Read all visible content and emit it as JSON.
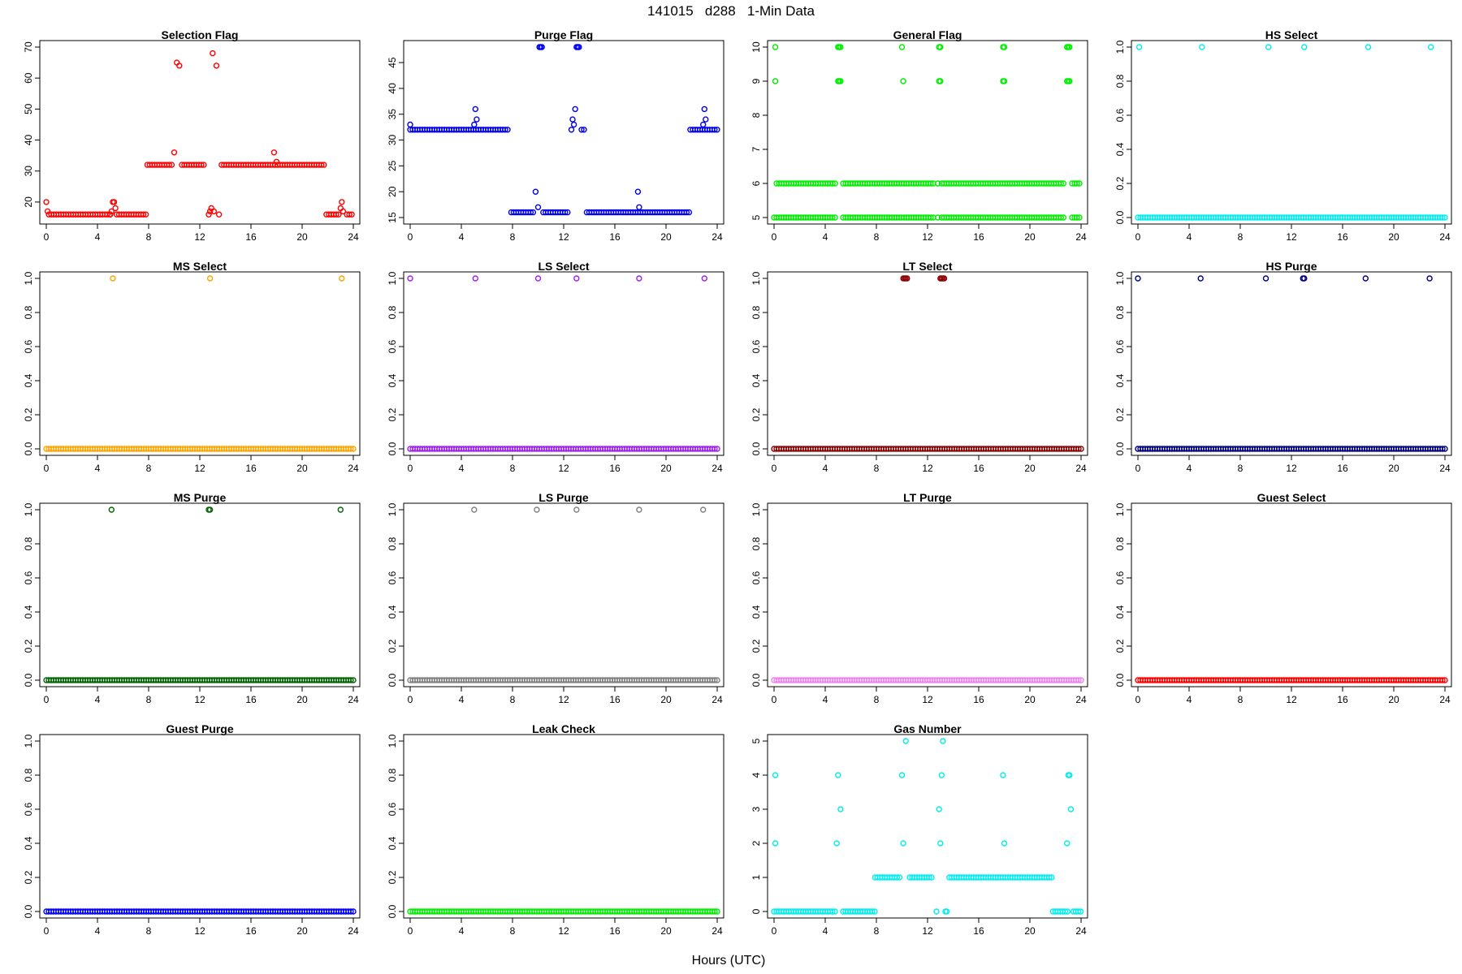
{
  "figure": {
    "title": "141015   d288   1-Min Data",
    "xlabel": "Hours (UTC)"
  },
  "chart_data": [
    {
      "type": "scatter",
      "title": "Selection Flag",
      "color": "#ff0000",
      "xlim": [
        0,
        24
      ],
      "ylim": [
        15,
        70
      ],
      "xticks": [
        0,
        4,
        8,
        12,
        16,
        20,
        24
      ],
      "yticks": [
        20,
        30,
        40,
        50,
        60,
        70
      ],
      "ytick_labels": [
        "20",
        "30",
        "40",
        "50",
        "60",
        "70"
      ],
      "runs": [
        [
          0.2,
          5.0,
          16
        ],
        [
          5.5,
          7.8,
          16
        ],
        [
          7.9,
          9.9,
          32
        ],
        [
          10.6,
          12.4,
          32
        ],
        [
          13.7,
          21.8,
          32
        ],
        [
          21.9,
          23.0,
          16
        ],
        [
          23.5,
          24.0,
          16
        ]
      ],
      "points": [
        [
          0.0,
          20
        ],
        [
          0.1,
          17
        ],
        [
          5.0,
          16
        ],
        [
          5.1,
          17
        ],
        [
          5.2,
          20
        ],
        [
          5.3,
          20
        ],
        [
          5.4,
          18
        ],
        [
          10.0,
          36
        ],
        [
          10.2,
          65
        ],
        [
          10.4,
          64
        ],
        [
          12.7,
          16
        ],
        [
          12.8,
          17
        ],
        [
          12.9,
          18
        ],
        [
          13.0,
          68
        ],
        [
          13.1,
          17
        ],
        [
          13.3,
          64
        ],
        [
          13.5,
          16
        ],
        [
          17.8,
          36
        ],
        [
          18.0,
          33
        ],
        [
          23.0,
          18
        ],
        [
          23.1,
          20
        ],
        [
          23.2,
          17
        ]
      ]
    },
    {
      "type": "scatter",
      "title": "Purge Flag",
      "color": "#0000ee",
      "xlim": [
        0,
        24
      ],
      "ylim": [
        15,
        48
      ],
      "xticks": [
        0,
        4,
        8,
        12,
        16,
        20,
        24
      ],
      "yticks": [
        15,
        20,
        25,
        30,
        35,
        40,
        45
      ],
      "ytick_labels": [
        "15",
        "20",
        "25",
        "30",
        "35",
        "40",
        "45"
      ],
      "runs": [
        [
          0.0,
          7.8,
          32
        ],
        [
          7.9,
          9.8,
          16
        ],
        [
          10.4,
          12.4,
          16
        ],
        [
          13.4,
          13.6,
          32
        ],
        [
          13.8,
          21.8,
          16
        ],
        [
          21.9,
          24.0,
          32
        ]
      ],
      "points": [
        [
          0.0,
          33
        ],
        [
          5.0,
          33
        ],
        [
          5.1,
          36
        ],
        [
          5.2,
          34
        ],
        [
          9.8,
          20
        ],
        [
          10.0,
          17
        ],
        [
          10.1,
          48
        ],
        [
          10.2,
          48
        ],
        [
          10.3,
          48
        ],
        [
          12.6,
          32
        ],
        [
          12.7,
          34
        ],
        [
          12.8,
          33
        ],
        [
          12.9,
          36
        ],
        [
          13.0,
          48
        ],
        [
          13.1,
          48
        ],
        [
          13.2,
          48
        ],
        [
          17.8,
          20
        ],
        [
          17.9,
          17
        ],
        [
          22.9,
          33
        ],
        [
          23.0,
          36
        ],
        [
          23.1,
          34
        ]
      ]
    },
    {
      "type": "scatter",
      "title": "General Flag",
      "color": "#00ee00",
      "xlim": [
        0,
        24
      ],
      "ylim": [
        5,
        10
      ],
      "xticks": [
        0,
        4,
        8,
        12,
        16,
        20,
        24
      ],
      "yticks": [
        5,
        6,
        7,
        8,
        9,
        10
      ],
      "ytick_labels": [
        "5",
        "6",
        "7",
        "8",
        "9",
        "10"
      ],
      "runs": [
        [
          0.0,
          4.9,
          5
        ],
        [
          0.2,
          4.9,
          6
        ],
        [
          5.4,
          12.5,
          5
        ],
        [
          5.4,
          12.5,
          6
        ],
        [
          13.1,
          22.8,
          5
        ],
        [
          13.1,
          22.8,
          6
        ],
        [
          23.3,
          24.0,
          5
        ],
        [
          23.3,
          24.0,
          6
        ]
      ],
      "points": [
        [
          0.1,
          10
        ],
        [
          0.1,
          9
        ],
        [
          5.0,
          10
        ],
        [
          5.1,
          10
        ],
        [
          5.2,
          10
        ],
        [
          5.0,
          9
        ],
        [
          5.1,
          9
        ],
        [
          5.2,
          9
        ],
        [
          10.0,
          10
        ],
        [
          10.1,
          9
        ],
        [
          12.8,
          5
        ],
        [
          12.8,
          6
        ],
        [
          12.9,
          10
        ],
        [
          13.0,
          10
        ],
        [
          12.9,
          9
        ],
        [
          13.0,
          9
        ],
        [
          17.9,
          10
        ],
        [
          18.0,
          10
        ],
        [
          17.9,
          9
        ],
        [
          18.0,
          9
        ],
        [
          22.9,
          10
        ],
        [
          23.0,
          10
        ],
        [
          23.1,
          10
        ],
        [
          22.9,
          9
        ],
        [
          23.0,
          9
        ],
        [
          23.1,
          9
        ]
      ]
    },
    {
      "type": "scatter",
      "title": "HS Select",
      "color": "#00eeee",
      "xlim": [
        0,
        24
      ],
      "ylim": [
        0,
        1
      ],
      "xticks": [
        0,
        4,
        8,
        12,
        16,
        20,
        24
      ],
      "yticks": [
        0,
        0.2,
        0.4,
        0.6,
        0.8,
        1.0
      ],
      "ytick_labels": [
        "0.0",
        "0.2",
        "0.4",
        "0.6",
        "0.8",
        "1.0"
      ],
      "runs": [
        [
          0.0,
          24.0,
          0
        ]
      ],
      "points": [
        [
          0.1,
          1
        ],
        [
          5.0,
          1
        ],
        [
          10.2,
          1
        ],
        [
          13.0,
          1
        ],
        [
          18.0,
          1
        ],
        [
          22.9,
          1
        ]
      ]
    },
    {
      "type": "scatter",
      "title": "MS Select",
      "color": "#ffa500",
      "xlim": [
        0,
        24
      ],
      "ylim": [
        0,
        1
      ],
      "xticks": [
        0,
        4,
        8,
        12,
        16,
        20,
        24
      ],
      "yticks": [
        0,
        0.2,
        0.4,
        0.6,
        0.8,
        1.0
      ],
      "ytick_labels": [
        "0.0",
        "0.2",
        "0.4",
        "0.6",
        "0.8",
        "1.0"
      ],
      "runs": [
        [
          0.0,
          24.0,
          0
        ]
      ],
      "points": [
        [
          5.2,
          1
        ],
        [
          12.8,
          1
        ],
        [
          23.1,
          1
        ]
      ]
    },
    {
      "type": "scatter",
      "title": "LS Select",
      "color": "#a020f0",
      "xlim": [
        0,
        24
      ],
      "ylim": [
        0,
        1
      ],
      "xticks": [
        0,
        4,
        8,
        12,
        16,
        20,
        24
      ],
      "yticks": [
        0,
        0.2,
        0.4,
        0.6,
        0.8,
        1.0
      ],
      "ytick_labels": [
        "0.0",
        "0.2",
        "0.4",
        "0.6",
        "0.8",
        "1.0"
      ],
      "runs": [
        [
          0.0,
          24.0,
          0
        ]
      ],
      "points": [
        [
          0.0,
          1
        ],
        [
          5.1,
          1
        ],
        [
          10.0,
          1
        ],
        [
          13.0,
          1
        ],
        [
          17.9,
          1
        ],
        [
          23.0,
          1
        ]
      ]
    },
    {
      "type": "scatter",
      "title": "LT Select",
      "color": "#8b0000",
      "xlim": [
        0,
        24
      ],
      "ylim": [
        0,
        1
      ],
      "xticks": [
        0,
        4,
        8,
        12,
        16,
        20,
        24
      ],
      "yticks": [
        0,
        0.2,
        0.4,
        0.6,
        0.8,
        1.0
      ],
      "ytick_labels": [
        "0.0",
        "0.2",
        "0.4",
        "0.6",
        "0.8",
        "1.0"
      ],
      "runs": [
        [
          0.0,
          24.0,
          0
        ]
      ],
      "points": [
        [
          10.1,
          1
        ],
        [
          10.2,
          1
        ],
        [
          10.3,
          1
        ],
        [
          10.4,
          1
        ],
        [
          13.0,
          1
        ],
        [
          13.1,
          1
        ],
        [
          13.2,
          1
        ],
        [
          13.3,
          1
        ]
      ]
    },
    {
      "type": "scatter",
      "title": "HS Purge",
      "color": "#000080",
      "xlim": [
        0,
        24
      ],
      "ylim": [
        0,
        1
      ],
      "xticks": [
        0,
        4,
        8,
        12,
        16,
        20,
        24
      ],
      "yticks": [
        0,
        0.2,
        0.4,
        0.6,
        0.8,
        1.0
      ],
      "ytick_labels": [
        "0.0",
        "0.2",
        "0.4",
        "0.6",
        "0.8",
        "1.0"
      ],
      "runs": [
        [
          0.0,
          24.0,
          0
        ]
      ],
      "points": [
        [
          0.0,
          1
        ],
        [
          4.9,
          1
        ],
        [
          10.0,
          1
        ],
        [
          12.9,
          1
        ],
        [
          13.0,
          1
        ],
        [
          17.8,
          1
        ],
        [
          22.8,
          1
        ]
      ]
    },
    {
      "type": "scatter",
      "title": "MS Purge",
      "color": "#006400",
      "xlim": [
        0,
        24
      ],
      "ylim": [
        0,
        1
      ],
      "xticks": [
        0,
        4,
        8,
        12,
        16,
        20,
        24
      ],
      "yticks": [
        0,
        0.2,
        0.4,
        0.6,
        0.8,
        1.0
      ],
      "ytick_labels": [
        "0.0",
        "0.2",
        "0.4",
        "0.6",
        "0.8",
        "1.0"
      ],
      "runs": [
        [
          0.0,
          24.0,
          0
        ]
      ],
      "points": [
        [
          5.1,
          1
        ],
        [
          12.7,
          1
        ],
        [
          12.8,
          1
        ],
        [
          23.0,
          1
        ]
      ]
    },
    {
      "type": "scatter",
      "title": "LS Purge",
      "color": "#808080",
      "xlim": [
        0,
        24
      ],
      "ylim": [
        0,
        1
      ],
      "xticks": [
        0,
        4,
        8,
        12,
        16,
        20,
        24
      ],
      "yticks": [
        0,
        0.2,
        0.4,
        0.6,
        0.8,
        1.0
      ],
      "ytick_labels": [
        "0.0",
        "0.2",
        "0.4",
        "0.6",
        "0.8",
        "1.0"
      ],
      "runs": [
        [
          0.0,
          24.0,
          0
        ]
      ],
      "points": [
        [
          5.0,
          1
        ],
        [
          9.9,
          1
        ],
        [
          13.0,
          1
        ],
        [
          17.9,
          1
        ],
        [
          22.9,
          1
        ]
      ]
    },
    {
      "type": "scatter",
      "title": "LT Purge",
      "color": "#ee82ee",
      "xlim": [
        0,
        24
      ],
      "ylim": [
        0,
        1
      ],
      "xticks": [
        0,
        4,
        8,
        12,
        16,
        20,
        24
      ],
      "yticks": [
        0,
        0.2,
        0.4,
        0.6,
        0.8,
        1.0
      ],
      "ytick_labels": [
        "0.0",
        "0.2",
        "0.4",
        "0.6",
        "0.8",
        "1.0"
      ],
      "runs": [
        [
          0.0,
          24.0,
          0
        ]
      ],
      "points": []
    },
    {
      "type": "scatter",
      "title": "Guest Select",
      "color": "#ff0000",
      "xlim": [
        0,
        24
      ],
      "ylim": [
        0,
        1
      ],
      "xticks": [
        0,
        4,
        8,
        12,
        16,
        20,
        24
      ],
      "yticks": [
        0,
        0.2,
        0.4,
        0.6,
        0.8,
        1.0
      ],
      "ytick_labels": [
        "0.0",
        "0.2",
        "0.4",
        "0.6",
        "0.8",
        "1.0"
      ],
      "runs": [
        [
          0.0,
          24.0,
          0
        ]
      ],
      "points": []
    },
    {
      "type": "scatter",
      "title": "Guest Purge",
      "color": "#0000ff",
      "xlim": [
        0,
        24
      ],
      "ylim": [
        0,
        1
      ],
      "xticks": [
        0,
        4,
        8,
        12,
        16,
        20,
        24
      ],
      "yticks": [
        0,
        0.2,
        0.4,
        0.6,
        0.8,
        1.0
      ],
      "ytick_labels": [
        "0.0",
        "0.2",
        "0.4",
        "0.6",
        "0.8",
        "1.0"
      ],
      "runs": [
        [
          0.0,
          24.0,
          0
        ]
      ],
      "points": []
    },
    {
      "type": "scatter",
      "title": "Leak Check",
      "color": "#00ee00",
      "xlim": [
        0,
        24
      ],
      "ylim": [
        0,
        1
      ],
      "xticks": [
        0,
        4,
        8,
        12,
        16,
        20,
        24
      ],
      "yticks": [
        0,
        0.2,
        0.4,
        0.6,
        0.8,
        1.0
      ],
      "ytick_labels": [
        "0.0",
        "0.2",
        "0.4",
        "0.6",
        "0.8",
        "1.0"
      ],
      "runs": [
        [
          0.0,
          24.0,
          0
        ]
      ],
      "points": []
    },
    {
      "type": "scatter",
      "title": "Gas Number",
      "color": "#00eeee",
      "xlim": [
        0,
        24
      ],
      "ylim": [
        0,
        5
      ],
      "xticks": [
        0,
        4,
        8,
        12,
        16,
        20,
        24
      ],
      "yticks": [
        0,
        1,
        2,
        3,
        4,
        5
      ],
      "ytick_labels": [
        "0",
        "1",
        "2",
        "3",
        "4",
        "5"
      ],
      "runs": [
        [
          0.0,
          4.9,
          0
        ],
        [
          5.4,
          7.9,
          0
        ],
        [
          7.9,
          9.9,
          1
        ],
        [
          10.6,
          12.4,
          1
        ],
        [
          13.7,
          21.8,
          1
        ],
        [
          21.8,
          23.0,
          0
        ],
        [
          23.4,
          24.0,
          0
        ]
      ],
      "points": [
        [
          0.1,
          4
        ],
        [
          0.1,
          2
        ],
        [
          5.0,
          4
        ],
        [
          4.9,
          2
        ],
        [
          5.2,
          3
        ],
        [
          10.0,
          4
        ],
        [
          10.1,
          2
        ],
        [
          10.3,
          5
        ],
        [
          12.7,
          0
        ],
        [
          12.9,
          3
        ],
        [
          13.0,
          2
        ],
        [
          13.1,
          4
        ],
        [
          13.2,
          5
        ],
        [
          13.4,
          0
        ],
        [
          13.5,
          0
        ],
        [
          17.9,
          4
        ],
        [
          18.0,
          2
        ],
        [
          22.9,
          2
        ],
        [
          23.0,
          4
        ],
        [
          23.1,
          4
        ],
        [
          23.2,
          3
        ]
      ]
    }
  ]
}
